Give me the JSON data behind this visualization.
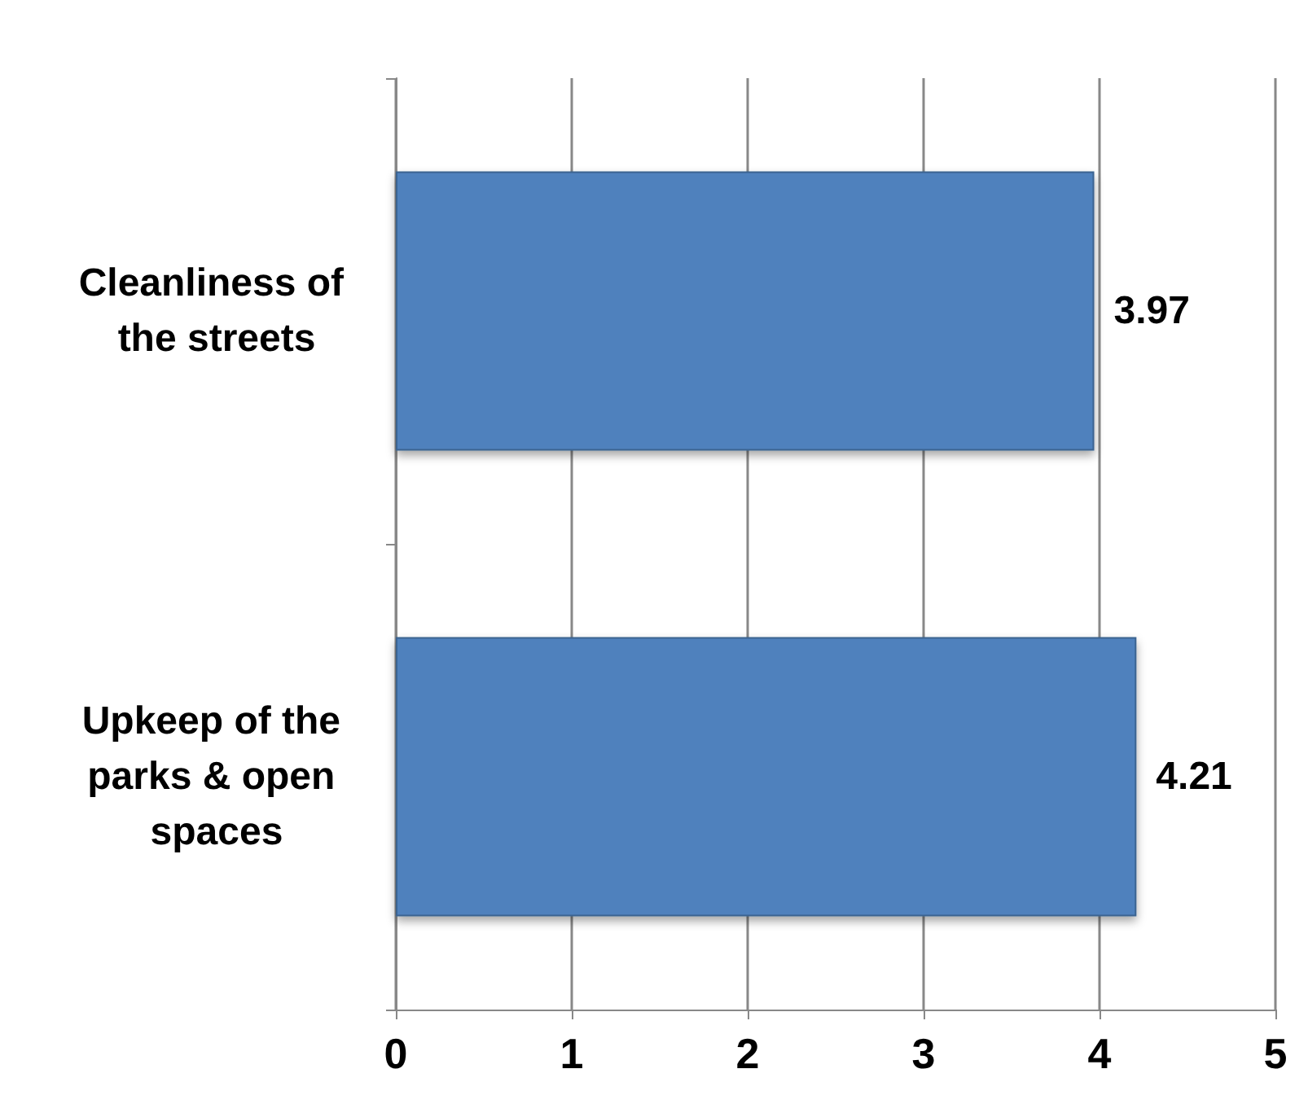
{
  "chart_data": {
    "type": "bar",
    "orientation": "horizontal",
    "categories": [
      "Cleanliness of the streets",
      "Upkeep of the parks & open spaces"
    ],
    "values": [
      3.97,
      4.21
    ],
    "color": "#4f81bd",
    "xlim": [
      0,
      5
    ],
    "xticks": [
      0,
      1,
      2,
      3,
      4,
      5
    ],
    "grid": "x",
    "data_labels": true
  }
}
